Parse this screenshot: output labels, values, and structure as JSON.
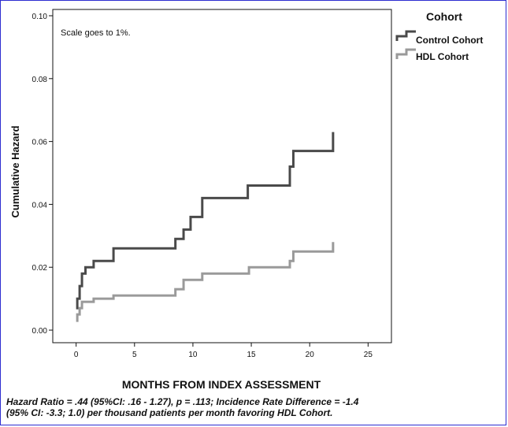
{
  "chart_data": {
    "type": "line",
    "step": true,
    "annotation": "Scale goes to 1%.",
    "xlabel": "MONTHS FROM INDEX ASSESSMENT",
    "ylabel": "Cumulative Hazard",
    "xlim": [
      -2,
      27
    ],
    "ylim": [
      -0.004,
      0.102
    ],
    "xticks": [
      0,
      5,
      10,
      15,
      20,
      25
    ],
    "yticks": [
      0.0,
      0.02,
      0.04,
      0.06,
      0.08,
      0.1
    ],
    "xtick_labels": [
      "0",
      "5",
      "10",
      "15",
      "20",
      "25"
    ],
    "ytick_labels": [
      "0.00",
      "0.02",
      "0.04",
      "0.06",
      "0.08",
      "0.10"
    ],
    "legend": {
      "title": "Cohort",
      "placement": "top-right outside"
    },
    "series": [
      {
        "name": "Control Cohort",
        "color": "#4a4a4a",
        "x": [
          0.0,
          0.1,
          0.3,
          0.5,
          0.8,
          1.5,
          3.2,
          8.5,
          9.2,
          9.8,
          10.8,
          14.7,
          18.3,
          18.6,
          22.0,
          22.0
        ],
        "y": [
          0.007,
          0.01,
          0.014,
          0.018,
          0.02,
          0.022,
          0.026,
          0.029,
          0.032,
          0.036,
          0.042,
          0.046,
          0.052,
          0.057,
          0.057,
          0.063
        ]
      },
      {
        "name": "HDL Cohort",
        "color": "#9a9a9a",
        "x": [
          0.0,
          0.1,
          0.3,
          0.5,
          1.5,
          3.2,
          8.5,
          9.2,
          10.8,
          14.8,
          18.3,
          18.6,
          22.0,
          22.0
        ],
        "y": [
          0.003,
          0.005,
          0.007,
          0.009,
          0.01,
          0.011,
          0.013,
          0.016,
          0.018,
          0.02,
          0.022,
          0.025,
          0.025,
          0.028
        ]
      }
    ]
  },
  "footnote": {
    "line1": "Hazard Ratio = .44 (95%CI: .16 - 1.27), p = .113; Incidence Rate Difference =  -1.4",
    "line2": "(95% CI: -3.3; 1.0) per thousand patients per month favoring HDL Cohort."
  }
}
